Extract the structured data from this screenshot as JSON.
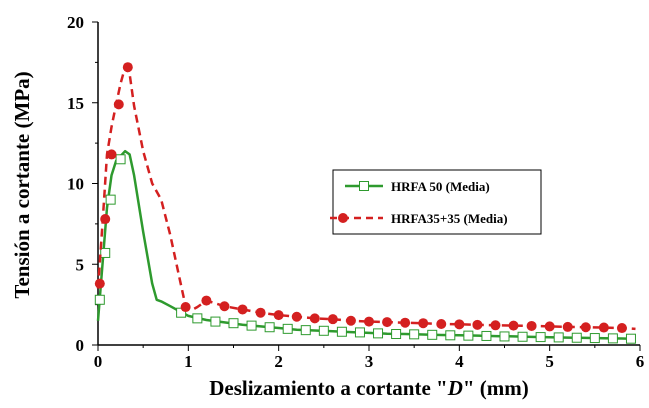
{
  "chart_data": {
    "type": "line",
    "title": "",
    "xlabel": "Deslizamiento a cortante \"D\" (mm)",
    "xlabel_parts": {
      "before": "Deslizamiento a cortante \"",
      "italic": "D",
      "after": "\" (mm)"
    },
    "ylabel": "Tensión a cortante   (MPa)",
    "xlim": [
      0,
      6
    ],
    "ylim": [
      0,
      20
    ],
    "xticks": [
      "0",
      "1",
      "2",
      "3",
      "4",
      "5",
      "6"
    ],
    "yticks": [
      "0",
      "5",
      "10",
      "15",
      "20"
    ],
    "grid": false,
    "legend_position": "right-middle",
    "series": [
      {
        "name": "HRFA 50 (Media)",
        "color": "#2e9a2e",
        "line_style": "solid",
        "marker": "open-square",
        "x": [
          0.0,
          0.05,
          0.1,
          0.15,
          0.2,
          0.25,
          0.3,
          0.35,
          0.4,
          0.5,
          0.6,
          0.65,
          0.7,
          0.8,
          0.9,
          1.0,
          1.2,
          1.4,
          1.6,
          1.8,
          2.0,
          2.2,
          2.4,
          2.6,
          2.8,
          3.0,
          3.2,
          3.4,
          3.6,
          3.8,
          4.0,
          4.2,
          4.4,
          4.6,
          4.8,
          5.0,
          5.2,
          5.4,
          5.6,
          5.8,
          5.95
        ],
        "y": [
          1.5,
          5.0,
          8.5,
          10.5,
          11.4,
          11.7,
          12.0,
          11.8,
          10.5,
          7.0,
          3.8,
          2.8,
          2.7,
          2.4,
          2.1,
          1.8,
          1.55,
          1.4,
          1.25,
          1.15,
          1.05,
          0.95,
          0.9,
          0.85,
          0.8,
          0.75,
          0.7,
          0.68,
          0.65,
          0.62,
          0.6,
          0.58,
          0.55,
          0.53,
          0.5,
          0.48,
          0.46,
          0.44,
          0.42,
          0.4,
          0.38
        ],
        "marker_x": [
          0.02,
          0.08,
          0.14,
          0.25,
          0.92,
          1.1,
          1.3,
          1.5,
          1.7,
          1.9,
          2.1,
          2.3,
          2.5,
          2.7,
          2.9,
          3.1,
          3.3,
          3.5,
          3.7,
          3.9,
          4.1,
          4.3,
          4.5,
          4.7,
          4.9,
          5.1,
          5.3,
          5.5,
          5.7,
          5.9
        ],
        "marker_y": [
          2.8,
          5.7,
          9.0,
          11.5,
          2.0,
          1.65,
          1.45,
          1.35,
          1.2,
          1.1,
          1.0,
          0.92,
          0.88,
          0.82,
          0.78,
          0.72,
          0.68,
          0.66,
          0.63,
          0.6,
          0.58,
          0.56,
          0.53,
          0.51,
          0.49,
          0.47,
          0.45,
          0.43,
          0.41,
          0.39
        ]
      },
      {
        "name": "HRFA35+35 (Media)",
        "color": "#d42020",
        "line_style": "dashed",
        "marker": "filled-circle",
        "x": [
          0.0,
          0.05,
          0.1,
          0.15,
          0.2,
          0.25,
          0.3,
          0.35,
          0.4,
          0.5,
          0.6,
          0.7,
          0.8,
          0.9,
          0.97,
          1.05,
          1.1,
          1.2,
          1.4,
          1.6,
          1.8,
          2.0,
          2.2,
          2.4,
          2.6,
          2.8,
          3.0,
          3.2,
          3.4,
          3.6,
          3.8,
          4.0,
          4.2,
          4.4,
          4.6,
          4.8,
          5.0,
          5.2,
          5.4,
          5.6,
          5.8,
          5.95
        ],
        "y": [
          3.5,
          7.5,
          11.8,
          13.5,
          14.9,
          16.2,
          17.2,
          16.8,
          14.8,
          12.0,
          10.0,
          9.0,
          6.8,
          4.2,
          2.4,
          2.2,
          2.35,
          2.75,
          2.4,
          2.2,
          2.0,
          1.85,
          1.75,
          1.65,
          1.6,
          1.5,
          1.45,
          1.42,
          1.38,
          1.35,
          1.3,
          1.28,
          1.25,
          1.22,
          1.2,
          1.18,
          1.15,
          1.12,
          1.1,
          1.08,
          1.05,
          1.0
        ],
        "marker_x": [
          0.02,
          0.08,
          0.15,
          0.23,
          0.33,
          0.97,
          1.2,
          1.4,
          1.6,
          1.8,
          2.0,
          2.2,
          2.4,
          2.6,
          2.8,
          3.0,
          3.2,
          3.4,
          3.6,
          3.8,
          4.0,
          4.2,
          4.4,
          4.6,
          4.8,
          5.0,
          5.2,
          5.4,
          5.6,
          5.8
        ],
        "marker_y": [
          3.8,
          7.8,
          11.8,
          14.9,
          17.2,
          2.35,
          2.75,
          2.4,
          2.2,
          2.0,
          1.85,
          1.75,
          1.65,
          1.6,
          1.5,
          1.45,
          1.42,
          1.38,
          1.35,
          1.3,
          1.28,
          1.25,
          1.22,
          1.2,
          1.18,
          1.15,
          1.12,
          1.1,
          1.08,
          1.05
        ]
      }
    ]
  }
}
